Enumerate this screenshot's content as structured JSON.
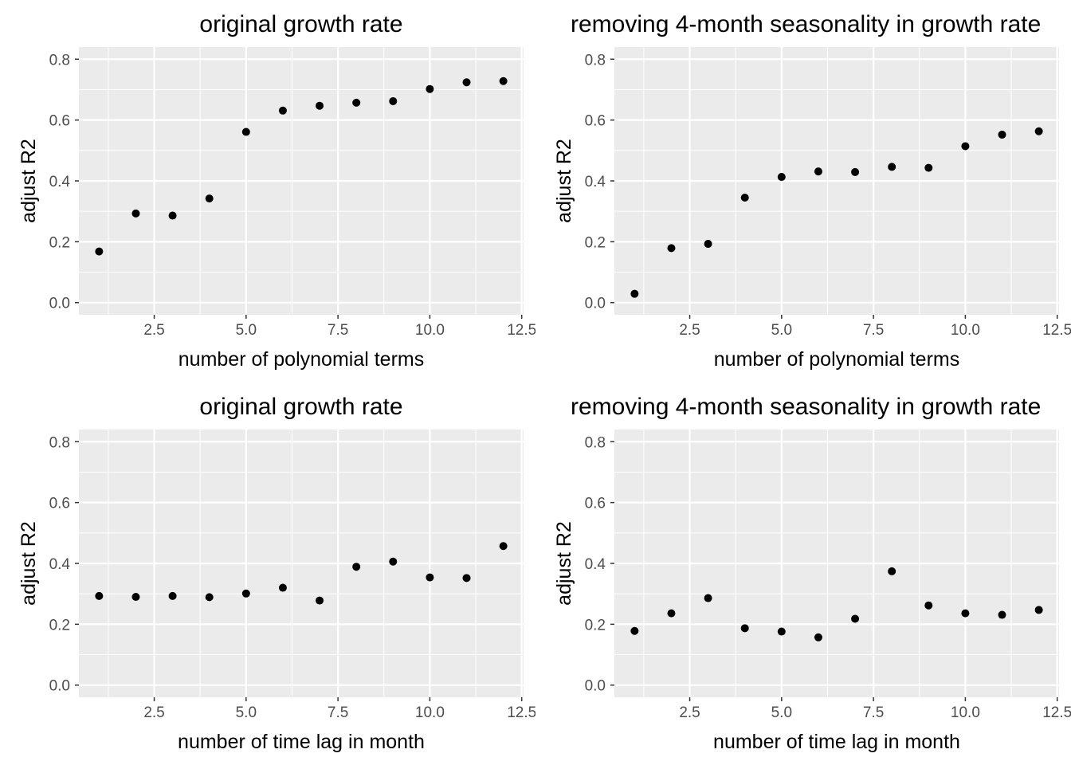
{
  "figure": {
    "background": "#ffffff",
    "panel_background": "#ebebeb",
    "grid_color": "#ffffff",
    "point_color": "#000000"
  },
  "chart_data": [
    {
      "type": "scatter",
      "title": "original growth rate",
      "xlabel": "number of polynomial terms",
      "ylabel": "adjust R2",
      "xlim": [
        0.45,
        12.55
      ],
      "ylim": [
        -0.04,
        0.84
      ],
      "xticks": [
        2.5,
        5.0,
        7.5,
        10.0,
        12.5
      ],
      "xtick_labels": [
        "2.5",
        "5.0",
        "7.5",
        "10.0",
        "12.5"
      ],
      "yticks": [
        0.0,
        0.2,
        0.4,
        0.6,
        0.8
      ],
      "ytick_labels": [
        "0.0",
        "0.2",
        "0.4",
        "0.6",
        "0.8"
      ],
      "grid": true,
      "series": [
        {
          "x": [
            1,
            2,
            3,
            4,
            5,
            6,
            7,
            8,
            9,
            10,
            11,
            12
          ],
          "y": [
            0.168,
            0.293,
            0.286,
            0.342,
            0.561,
            0.631,
            0.647,
            0.657,
            0.662,
            0.702,
            0.724,
            0.728
          ]
        }
      ]
    },
    {
      "type": "scatter",
      "title": "removing 4-month seasonality in growth rate",
      "xlabel": "number of polynomial terms",
      "ylabel": "adjust R2",
      "xlim": [
        0.45,
        12.55
      ],
      "ylim": [
        -0.04,
        0.84
      ],
      "xticks": [
        2.5,
        5.0,
        7.5,
        10.0,
        12.5
      ],
      "xtick_labels": [
        "2.5",
        "5.0",
        "7.5",
        "10.0",
        "12.5"
      ],
      "yticks": [
        0.0,
        0.2,
        0.4,
        0.6,
        0.8
      ],
      "ytick_labels": [
        "0.0",
        "0.2",
        "0.4",
        "0.6",
        "0.8"
      ],
      "grid": true,
      "series": [
        {
          "x": [
            1,
            2,
            3,
            4,
            5,
            6,
            7,
            8,
            9,
            10,
            11,
            12
          ],
          "y": [
            0.029,
            0.179,
            0.193,
            0.345,
            0.413,
            0.431,
            0.429,
            0.446,
            0.443,
            0.514,
            0.552,
            0.563
          ]
        }
      ]
    },
    {
      "type": "scatter",
      "title": "original growth rate",
      "xlabel": "number of time lag in month",
      "ylabel": "adjust R2",
      "xlim": [
        0.45,
        12.55
      ],
      "ylim": [
        -0.04,
        0.84
      ],
      "xticks": [
        2.5,
        5.0,
        7.5,
        10.0,
        12.5
      ],
      "xtick_labels": [
        "2.5",
        "5.0",
        "7.5",
        "10.0",
        "12.5"
      ],
      "yticks": [
        0.0,
        0.2,
        0.4,
        0.6,
        0.8
      ],
      "ytick_labels": [
        "0.0",
        "0.2",
        "0.4",
        "0.6",
        "0.8"
      ],
      "grid": true,
      "series": [
        {
          "x": [
            1,
            2,
            3,
            4,
            5,
            6,
            7,
            8,
            9,
            10,
            11,
            12
          ],
          "y": [
            0.293,
            0.29,
            0.293,
            0.289,
            0.301,
            0.32,
            0.278,
            0.389,
            0.406,
            0.354,
            0.352,
            0.457
          ]
        }
      ]
    },
    {
      "type": "scatter",
      "title": "removing 4-month seasonality in growth rate",
      "xlabel": "number of time lag in month",
      "ylabel": "adjust R2",
      "xlim": [
        0.45,
        12.55
      ],
      "ylim": [
        -0.04,
        0.84
      ],
      "xticks": [
        2.5,
        5.0,
        7.5,
        10.0,
        12.5
      ],
      "xtick_labels": [
        "2.5",
        "5.0",
        "7.5",
        "10.0",
        "12.5"
      ],
      "yticks": [
        0.0,
        0.2,
        0.4,
        0.6,
        0.8
      ],
      "ytick_labels": [
        "0.0",
        "0.2",
        "0.4",
        "0.6",
        "0.8"
      ],
      "grid": true,
      "series": [
        {
          "x": [
            1,
            2,
            3,
            4,
            5,
            6,
            7,
            8,
            9,
            10,
            11,
            12
          ],
          "y": [
            0.178,
            0.236,
            0.286,
            0.187,
            0.176,
            0.157,
            0.218,
            0.374,
            0.262,
            0.236,
            0.231,
            0.247
          ]
        }
      ]
    }
  ]
}
